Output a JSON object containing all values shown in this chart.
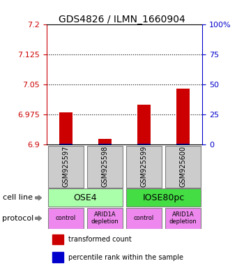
{
  "title": "GDS4826 / ILMN_1660904",
  "samples": [
    "GSM925597",
    "GSM925598",
    "GSM925599",
    "GSM925600"
  ],
  "red_values": [
    6.98,
    6.915,
    7.0,
    7.04
  ],
  "blue_values": [
    6.903,
    6.902,
    6.903,
    6.902
  ],
  "y_min": 6.9,
  "y_max": 7.2,
  "y_ticks_left": [
    6.9,
    6.975,
    7.05,
    7.125,
    7.2
  ],
  "y_ticks_right": [
    0,
    25,
    50,
    75,
    100
  ],
  "cell_lines": [
    "OSE4",
    "IOSE80pc"
  ],
  "cell_line_colors": [
    "#aaffaa",
    "#44dd44"
  ],
  "protocols": [
    "control",
    "ARID1A\ndepletion",
    "control",
    "ARID1A\ndepletion"
  ],
  "protocol_color": "#ee88ee",
  "sample_box_color": "#cccccc",
  "bar_color_red": "#cc0000",
  "bar_color_blue": "#0000cc",
  "left_axis_color": "#cc0000",
  "right_axis_color": "#0000cc",
  "legend_red_label": "transformed count",
  "legend_blue_label": "percentile rank within the sample",
  "cell_line_label": "cell line",
  "protocol_label": "protocol"
}
